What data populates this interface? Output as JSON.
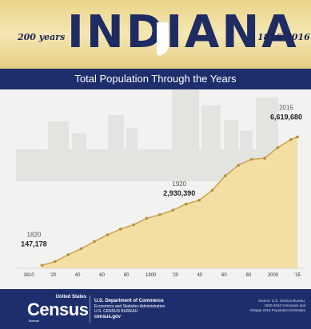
{
  "header": {
    "anniversary_text": "200 years",
    "state_name": "INDIANA",
    "year_range": "1816-2016",
    "subtitle": "Total Population Through the Years"
  },
  "chart_data": {
    "type": "area",
    "title": "Total Population Through the Years",
    "x": [
      1820,
      1830,
      1840,
      1850,
      1860,
      1870,
      1880,
      1890,
      1900,
      1910,
      1920,
      1930,
      1940,
      1950,
      1960,
      1970,
      1980,
      1990,
      2000,
      2010,
      2015
    ],
    "y": [
      147178,
      343031,
      685866,
      988416,
      1350428,
      1680637,
      1978301,
      2192404,
      2516462,
      2700876,
      2930390,
      3238503,
      3427796,
      3934224,
      4662498,
      5193669,
      5490224,
      5544159,
      6080485,
      6483802,
      6619680
    ],
    "xticks": [
      "1810",
      "'20",
      "40",
      "60",
      "80",
      "1900",
      "'20",
      "40",
      "60",
      "80",
      "2000",
      "'15"
    ],
    "xlim": [
      1810,
      2015
    ],
    "ylim": [
      0,
      7000000
    ],
    "annotations": [
      {
        "year_label": "1820",
        "value_label": "147,178",
        "x": 1820,
        "y": 147178
      },
      {
        "year_label": "1920",
        "value_label": "2,930,390",
        "x": 1920,
        "y": 2930390
      },
      {
        "year_label": "2015",
        "value_label": "6,619,680",
        "x": 2015,
        "y": 6619680
      }
    ],
    "colors": {
      "area": "#f3dfa3",
      "line": "#c9a24b",
      "marker": "#b88f36"
    }
  },
  "footer": {
    "brand_small": "United States",
    "brand_big": "Census",
    "brand_bureau": "Bureau",
    "dept_lines": [
      "U.S. Department of Commerce",
      "Economics and Statistics Administration",
      "U.S. CENSUS BUREAU",
      "census.gov"
    ],
    "source_lines": [
      "Source: U.S. Census Bureau,",
      "1820-2010 Censuses and",
      "Vintage 2015 Population Estimates"
    ]
  },
  "colors": {
    "navy": "#1e2e6d",
    "gold": "#e9d488"
  }
}
